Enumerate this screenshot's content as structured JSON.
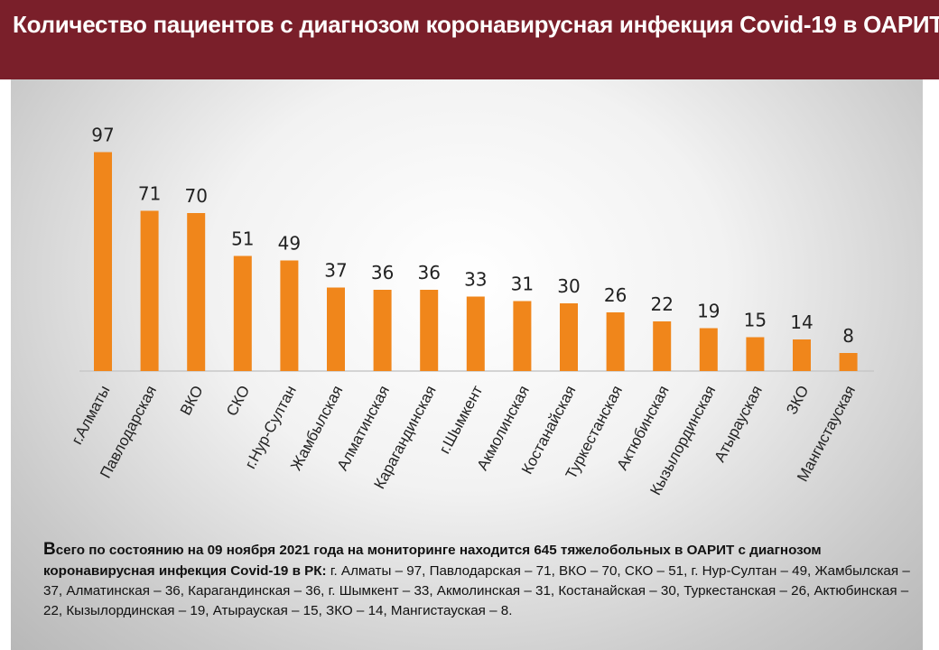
{
  "header": {
    "title": "Количество пациентов с диагнозом коронавирусная инфекция Covid-19 в ОАРИТ"
  },
  "colors": {
    "header_bg": "#7a1f2a",
    "bar": "#f0861b"
  },
  "chart_data": {
    "type": "bar",
    "title": "Количество пациентов с диагнозом коронавирусная инфекция Covid-19 в ОАРИТ",
    "categories": [
      "г.Алматы",
      "Павлодарская",
      "ВКО",
      "СКО",
      "г.Нур-Султан",
      "Жамбылская",
      "Алматинская",
      "Карагандинская",
      "г.Шымкент",
      "Акмолинская",
      "Костанайская",
      "Туркестанская",
      "Актюбинская",
      "Кызылординская",
      "Атырауская",
      "ЗКО",
      "Мангистауская"
    ],
    "values": [
      97,
      71,
      70,
      51,
      49,
      37,
      36,
      36,
      33,
      31,
      30,
      26,
      22,
      19,
      15,
      14,
      8
    ],
    "ylim": [
      0,
      100
    ],
    "grid": false,
    "legend": "none",
    "data_labels": true
  },
  "note": {
    "bold": "Всего по состоянию на 09 ноября 2021 года на мониторинге находится 645 тяжелобольных в ОАРИТ с диагнозом коронавирусная инфекция Covid-19 в РК:",
    "rest": " г. Алматы – 97, Павлодарская – 71, ВКО – 70, СКО – 51, г. Нур-Султан – 49, Жамбылская – 37, Алматинская – 36, Карагандинская – 36, г. Шымкент – 33, Акмолинская – 31, Костанайская – 30, Туркестанская – 26, Актюбинская – 22, Кызылординская – 19, Атырауская – 15, ЗКО – 14, Мангистауская – 8."
  }
}
